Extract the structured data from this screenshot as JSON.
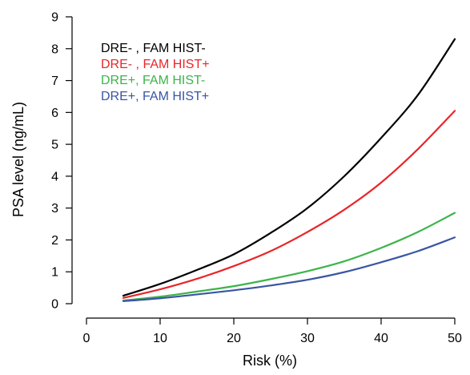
{
  "chart_data": {
    "type": "line",
    "title": "",
    "xlabel": "Risk (%)",
    "ylabel": "PSA level (ng/mL)",
    "xlim": [
      0,
      50
    ],
    "ylim": [
      0,
      9
    ],
    "xticks": [
      0,
      10,
      20,
      30,
      40,
      50
    ],
    "yticks": [
      0,
      1,
      2,
      3,
      4,
      5,
      6,
      7,
      8,
      9
    ],
    "grid": false,
    "legend_position": "top-left",
    "x": [
      5,
      10,
      15,
      20,
      25,
      30,
      35,
      40,
      45,
      50
    ],
    "series": [
      {
        "name": "DRE- , FAM HIST-",
        "color": "#000000",
        "values": [
          0.25,
          0.62,
          1.06,
          1.55,
          2.22,
          3.0,
          4.0,
          5.2,
          6.55,
          8.3
        ]
      },
      {
        "name": "DRE- , FAM HIST+",
        "color": "#e8262a",
        "values": [
          0.18,
          0.45,
          0.78,
          1.18,
          1.65,
          2.25,
          2.95,
          3.8,
          4.85,
          6.05
        ]
      },
      {
        "name": "DRE+, FAM HIST-",
        "color": "#3cb44b",
        "values": [
          0.1,
          0.22,
          0.38,
          0.55,
          0.77,
          1.02,
          1.33,
          1.75,
          2.25,
          2.85
        ]
      },
      {
        "name": "DRE+, FAM HIST+",
        "color": "#3a55a4",
        "values": [
          0.08,
          0.17,
          0.29,
          0.42,
          0.57,
          0.75,
          0.99,
          1.3,
          1.65,
          2.08
        ]
      }
    ]
  }
}
